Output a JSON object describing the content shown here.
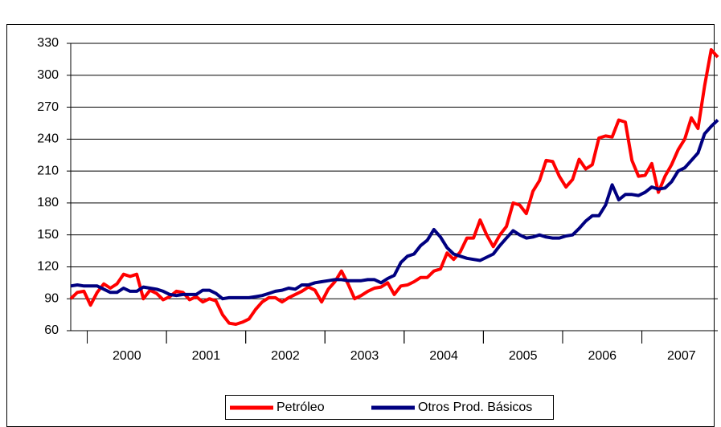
{
  "chart_data": {
    "type": "line",
    "categories": [
      null,
      null,
      null,
      null,
      null,
      null,
      null,
      null,
      "2000",
      null,
      null,
      null,
      null,
      null,
      null,
      null,
      null,
      null,
      null,
      null,
      "2001",
      null,
      null,
      null,
      null,
      null,
      null,
      null,
      null,
      null,
      null,
      null,
      "2002",
      null,
      null,
      null,
      null,
      null,
      null,
      null,
      null,
      null,
      null,
      null,
      "2003",
      null,
      null,
      null,
      null,
      null,
      null,
      null,
      null,
      null,
      null,
      null,
      "2004",
      null,
      null,
      null,
      null,
      null,
      null,
      null,
      null,
      null,
      null,
      null,
      "2005",
      null,
      null,
      null,
      null,
      null,
      null,
      null,
      null,
      null,
      null,
      null,
      "2006",
      null,
      null,
      null,
      null,
      null,
      null,
      null,
      null,
      null,
      null,
      null,
      "2007",
      null,
      null,
      null,
      null,
      null,
      null
    ],
    "series": [
      {
        "name": "Petróleo",
        "color": "#ff0000",
        "values": [
          90,
          96,
          97,
          84,
          96,
          104,
          100,
          104,
          113,
          111,
          113,
          90,
          98,
          95,
          89,
          92,
          97,
          96,
          89,
          92,
          87,
          90,
          88,
          75,
          67,
          66,
          68,
          71,
          80,
          87,
          91,
          91,
          87,
          91,
          94,
          97,
          101,
          98,
          87,
          99,
          106,
          116,
          104,
          90,
          93,
          97,
          100,
          101,
          105,
          94,
          102,
          103,
          106,
          110,
          110,
          116,
          118,
          133,
          127,
          134,
          147,
          147,
          164,
          150,
          139,
          150,
          158,
          180,
          178,
          170,
          191,
          201,
          220,
          219,
          205,
          195,
          202,
          221,
          212,
          216,
          241,
          243,
          242,
          258,
          256,
          220,
          205,
          206,
          217,
          190,
          205,
          216,
          230,
          240,
          260,
          250,
          290,
          324,
          317
        ]
      },
      {
        "name": "Otros Prod. Básicos",
        "color": "#000080",
        "values": [
          102,
          103,
          102,
          102,
          102,
          99,
          96,
          96,
          100,
          97,
          97,
          101,
          100,
          99,
          97,
          94,
          93,
          94,
          94,
          94,
          98,
          98,
          95,
          90,
          91,
          91,
          91,
          91,
          92,
          93,
          95,
          97,
          98,
          100,
          99,
          103,
          103,
          105,
          106,
          107,
          108,
          108,
          107,
          107,
          107,
          108,
          108,
          105,
          109,
          112,
          124,
          130,
          132,
          140,
          145,
          155,
          148,
          138,
          132,
          130,
          128,
          127,
          126,
          129,
          132,
          140,
          147,
          154,
          150,
          147,
          148,
          150,
          148,
          147,
          147,
          149,
          150,
          156,
          163,
          168,
          168,
          178,
          197,
          183,
          188,
          188,
          187,
          190,
          195,
          193,
          194,
          200,
          210,
          213,
          220,
          227,
          245,
          252,
          258
        ]
      }
    ],
    "ylim": [
      60,
      330
    ],
    "yticks": [
      60,
      90,
      120,
      150,
      180,
      210,
      240,
      270,
      300,
      330
    ],
    "grid": true,
    "legend": "bottom"
  }
}
